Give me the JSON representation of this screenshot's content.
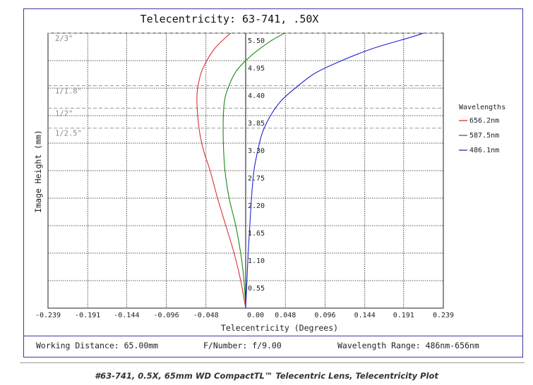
{
  "chart_data": {
    "type": "line",
    "title": "Telecentricity: 63-741, .50X",
    "xlabel": "Telecentricity (Degrees)",
    "ylabel": "Image Height (mm)",
    "xlim": [
      -0.239,
      0.239
    ],
    "ylim": [
      0,
      5.5
    ],
    "x_ticks": [
      "-0.239",
      "-0.191",
      "-0.144",
      "-0.096",
      "-0.048",
      "0.00",
      "0.048",
      "0.096",
      "0.144",
      "0.191",
      "0.239"
    ],
    "x_tick_values": [
      -0.239,
      -0.191,
      -0.144,
      -0.096,
      -0.048,
      0.0,
      0.048,
      0.096,
      0.144,
      0.191,
      0.239
    ],
    "y_ticks": [
      "0.55",
      "1.10",
      "1.65",
      "2.20",
      "2.75",
      "3.30",
      "3.85",
      "4.40",
      "4.95",
      "5.50"
    ],
    "y_tick_values": [
      0.55,
      1.1,
      1.65,
      2.2,
      2.75,
      3.3,
      3.85,
      4.4,
      4.95,
      5.5
    ],
    "grid": true,
    "legend_title": "Wavelengths",
    "legend_position": "right",
    "sensor_markers": [
      {
        "label": "2/3\"",
        "y": 5.5
      },
      {
        "label": "1/1.8\"",
        "y": 4.45
      },
      {
        "label": "1/2\"",
        "y": 4.0
      },
      {
        "label": "1/2.5\"",
        "y": 3.6
      }
    ],
    "series": [
      {
        "name": "656.2nm",
        "color": "#e03030",
        "x": [
          0.0,
          -0.006,
          -0.014,
          -0.024,
          -0.034,
          -0.043,
          -0.05,
          -0.055,
          -0.058,
          -0.059,
          -0.058,
          -0.054,
          -0.047,
          -0.037,
          -0.025,
          -0.018
        ],
        "y": [
          0.0,
          0.55,
          1.1,
          1.65,
          2.2,
          2.75,
          3.1,
          3.45,
          3.85,
          4.2,
          4.4,
          4.7,
          4.95,
          5.2,
          5.4,
          5.5
        ]
      },
      {
        "name": "587.5nm",
        "color": "#1a8a1a",
        "x": [
          0.0,
          -0.002,
          -0.006,
          -0.012,
          -0.02,
          -0.025,
          -0.027,
          -0.027,
          -0.025,
          -0.019,
          -0.011,
          0.0,
          0.014,
          0.031,
          0.047
        ],
        "y": [
          0.0,
          0.55,
          1.1,
          1.65,
          2.2,
          2.75,
          3.3,
          3.85,
          4.2,
          4.5,
          4.75,
          4.95,
          5.15,
          5.35,
          5.5
        ]
      },
      {
        "name": "486.1nm",
        "color": "#2222d0",
        "x": [
          0.0,
          0.0015,
          0.003,
          0.005,
          0.007,
          0.01,
          0.014,
          0.02,
          0.03,
          0.043,
          0.06,
          0.084,
          0.116,
          0.155,
          0.2,
          0.215
        ],
        "y": [
          0.0,
          0.55,
          1.1,
          1.65,
          2.2,
          2.75,
          3.1,
          3.5,
          3.85,
          4.15,
          4.4,
          4.7,
          4.95,
          5.2,
          5.42,
          5.5
        ]
      }
    ]
  },
  "info": {
    "working_distance": "Working Distance: 65.00mm",
    "f_number": "F/Number: f/9.00",
    "wavelength_range": "Wavelength Range: 486nm-656nm"
  },
  "caption": "#63-741, 0.5X, 65mm WD CompactTL™ Telecentric Lens, Telecentricity Plot"
}
